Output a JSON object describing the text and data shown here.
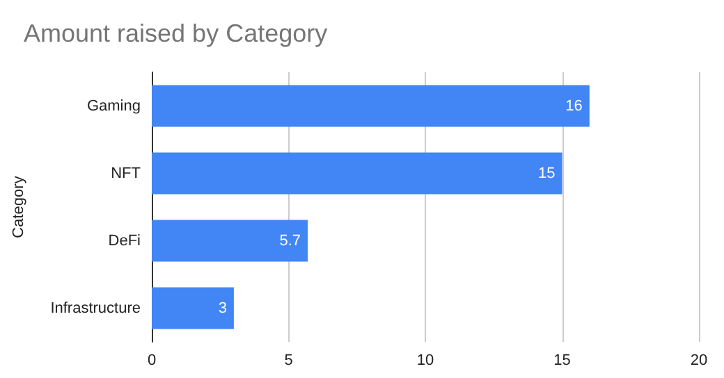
{
  "chart_data": {
    "type": "bar",
    "orientation": "horizontal",
    "title": "Amount raised by Category",
    "ylabel": "Category",
    "categories": [
      "Gaming",
      "NFT",
      "DeFi",
      "Infrastructure"
    ],
    "values": [
      16,
      15,
      5.7,
      3
    ],
    "color": "#4285f4",
    "xlim": [
      0,
      20
    ],
    "xticks": [
      0,
      5,
      10,
      15,
      20
    ],
    "grid": "x",
    "data_labels": true
  }
}
